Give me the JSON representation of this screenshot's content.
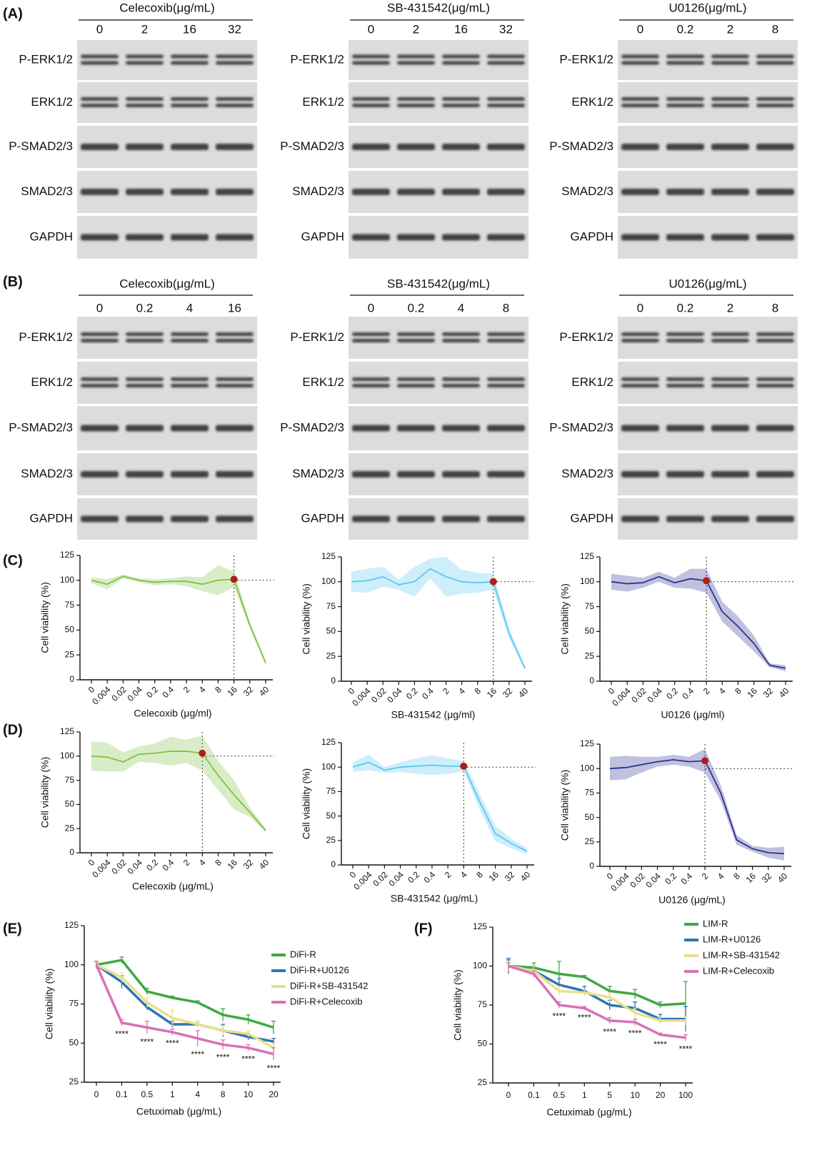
{
  "panel_labels": [
    "(A)",
    "(B)",
    "(C)",
    "(D)",
    "(E)",
    "(F)"
  ],
  "blots": [
    {
      "title": "Celecoxib(μg/mL)",
      "doses": [
        "0",
        "2",
        "16",
        "32"
      ],
      "proteins": [
        "P-ERK1/2",
        "ERK1/2",
        "P-SMAD2/3",
        "SMAD2/3",
        "GAPDH"
      ]
    },
    {
      "title": "SB-431542(μg/mL)",
      "doses": [
        "0",
        "2",
        "16",
        "32"
      ],
      "proteins": [
        "P-ERK1/2",
        "ERK1/2",
        "P-SMAD2/3",
        "SMAD2/3",
        "GAPDH"
      ]
    },
    {
      "title": "U0126(μg/mL)",
      "doses": [
        "0",
        "0.2",
        "2",
        "8"
      ],
      "proteins": [
        "P-ERK1/2",
        "ERK1/2",
        "P-SMAD2/3",
        "SMAD2/3",
        "GAPDH"
      ]
    },
    {
      "title": "Celecoxib(μg/mL)",
      "doses": [
        "0",
        "0.2",
        "4",
        "16"
      ],
      "proteins": [
        "P-ERK1/2",
        "ERK1/2",
        "P-SMAD2/3",
        "SMAD2/3",
        "GAPDH"
      ]
    },
    {
      "title": "SB-431542(μg/mL)",
      "doses": [
        "0",
        "0.2",
        "4",
        "8"
      ],
      "proteins": [
        "P-ERK1/2",
        "ERK1/2",
        "P-SMAD2/3",
        "SMAD2/3",
        "GAPDH"
      ]
    },
    {
      "title": "U0126(μg/mL)",
      "doses": [
        "0",
        "0.2",
        "2",
        "8"
      ],
      "proteins": [
        "P-ERK1/2",
        "ERK1/2",
        "P-SMAD2/3",
        "SMAD2/3",
        "GAPDH"
      ]
    }
  ],
  "chart_data": [
    {
      "type": "line",
      "band": true,
      "ylabel": "Cell viability (%)",
      "xlabel": "Celecoxib (μg/ml)",
      "categories": [
        "0",
        "0.004",
        "0.02",
        "0.04",
        "0.2",
        "0.4",
        "2",
        "4",
        "8",
        "16",
        "32",
        "40"
      ],
      "series": [
        {
          "color": "#7dc242",
          "values": [
            100,
            96,
            104,
            100,
            98,
            99,
            99,
            96,
            100,
            101,
            55,
            17
          ],
          "errors": [
            3,
            5,
            2,
            2,
            3,
            3,
            5,
            7,
            15,
            8,
            3,
            2
          ]
        }
      ],
      "ylim": [
        0,
        125
      ],
      "yticks": [
        0,
        25,
        50,
        75,
        100,
        125
      ],
      "reference_y": 100,
      "marker": {
        "category": "16",
        "color": "#b01c1c"
      }
    },
    {
      "type": "line",
      "band": true,
      "ylabel": "Cell viability (%)",
      "xlabel": "SB-431542 (μg/ml)",
      "categories": [
        "0",
        "0.004",
        "0.02",
        "0.04",
        "0.2",
        "0.4",
        "2",
        "4",
        "8",
        "16",
        "32",
        "40"
      ],
      "series": [
        {
          "color": "#5bc8ef",
          "values": [
            100,
            101,
            105,
            97,
            100,
            113,
            105,
            100,
            99,
            100,
            48,
            13
          ],
          "errors": [
            10,
            12,
            10,
            5,
            15,
            10,
            20,
            12,
            10,
            8,
            5,
            2
          ]
        }
      ],
      "ylim": [
        0,
        125
      ],
      "yticks": [
        0,
        25,
        50,
        75,
        100,
        125
      ],
      "reference_y": 100,
      "marker": {
        "category": "16",
        "color": "#b01c1c"
      }
    },
    {
      "type": "line",
      "band": true,
      "ylabel": "Cell viability (%)",
      "xlabel": "U0126 (μg/ml)",
      "categories": [
        "0",
        "0.004",
        "0.02",
        "0.04",
        "0.2",
        "0.4",
        "2",
        "4",
        "8",
        "16",
        "32",
        "40"
      ],
      "series": [
        {
          "color": "#2e3192",
          "values": [
            100,
            98,
            99,
            105,
            99,
            103,
            101,
            70,
            55,
            38,
            16,
            13
          ],
          "errors": [
            8,
            8,
            5,
            5,
            5,
            10,
            12,
            10,
            10,
            8,
            2,
            3
          ]
        }
      ],
      "ylim": [
        0,
        125
      ],
      "yticks": [
        0,
        25,
        50,
        75,
        100,
        125
      ],
      "reference_y": 100,
      "marker": {
        "category": "2",
        "color": "#b01c1c"
      }
    },
    {
      "type": "line",
      "band": true,
      "ylabel": "Cell viability (%)",
      "xlabel": "Celecoxib (μg/mL)",
      "categories": [
        "0",
        "0.004",
        "0.02",
        "0.04",
        "0.2",
        "0.4",
        "2",
        "4",
        "8",
        "16",
        "32",
        "40"
      ],
      "series": [
        {
          "color": "#7dc242",
          "values": [
            100,
            99,
            94,
            102,
            103,
            105,
            105,
            103,
            80,
            60,
            42,
            23
          ],
          "errors": [
            15,
            15,
            10,
            8,
            10,
            15,
            12,
            18,
            15,
            15,
            5,
            2
          ]
        }
      ],
      "ylim": [
        0,
        125
      ],
      "yticks": [
        0,
        25,
        50,
        75,
        100,
        125
      ],
      "reference_y": 100,
      "marker": {
        "category": "4",
        "color": "#b01c1c"
      }
    },
    {
      "type": "line",
      "band": true,
      "ylabel": "Cell viability (%)",
      "xlabel": "SB-431542 (μg/mL)",
      "categories": [
        "0",
        "0.004",
        "0.02",
        "0.04",
        "0.2",
        "0.4",
        "2",
        "4",
        "8",
        "16",
        "32",
        "40"
      ],
      "series": [
        {
          "color": "#5bc8ef",
          "values": [
            100,
            105,
            97,
            100,
            101,
            102,
            101,
            101,
            65,
            32,
            22,
            14
          ],
          "errors": [
            5,
            8,
            3,
            5,
            8,
            10,
            8,
            5,
            8,
            8,
            5,
            3
          ]
        }
      ],
      "ylim": [
        0,
        125
      ],
      "yticks": [
        0,
        25,
        50,
        75,
        100,
        125
      ],
      "reference_y": 100,
      "marker": {
        "category": "4",
        "color": "#b01c1c"
      }
    },
    {
      "type": "line",
      "band": true,
      "ylabel": "Cell viability (%)",
      "xlabel": "U0126 (μg/mL)",
      "categories": [
        "0",
        "0.004",
        "0.02",
        "0.04",
        "0.2",
        "0.4",
        "2",
        "4",
        "8",
        "16",
        "32",
        "40"
      ],
      "series": [
        {
          "color": "#2e3192",
          "values": [
            100,
            101,
            104,
            107,
            109,
            107,
            108,
            75,
            27,
            18,
            14,
            13
          ],
          "errors": [
            12,
            12,
            8,
            5,
            5,
            5,
            12,
            8,
            5,
            3,
            5,
            7
          ]
        }
      ],
      "ylim": [
        0,
        125
      ],
      "yticks": [
        0,
        25,
        50,
        75,
        100,
        125
      ],
      "reference_y": 100,
      "marker": {
        "category": "2",
        "color": "#b01c1c"
      }
    },
    {
      "type": "line",
      "band": false,
      "ylabel": "Cell viability (%)",
      "xlabel": "Cetuximab (μg/mL)",
      "categories": [
        "0",
        "0.1",
        "0.5",
        "1",
        "4",
        "8",
        "10",
        "20"
      ],
      "series": [
        {
          "name": "DiFi-R",
          "color": "#3ea843",
          "values": [
            100,
            103,
            83,
            79,
            76,
            68,
            65,
            60
          ],
          "errors": [
            2,
            2,
            2,
            1,
            1,
            4,
            3,
            4
          ]
        },
        {
          "name": "DiFi-R+U0126",
          "color": "#2e75b6",
          "values": [
            100,
            89,
            73,
            62,
            62,
            58,
            54,
            51
          ],
          "errors": [
            2,
            4,
            2,
            2,
            2,
            4,
            2,
            2
          ]
        },
        {
          "name": "DiFi-R+SB-431542",
          "color": "#e8df8c",
          "values": [
            100,
            92,
            76,
            66,
            62,
            58,
            56,
            47
          ],
          "errors": [
            3,
            3,
            3,
            5,
            2,
            3,
            2,
            3
          ]
        },
        {
          "name": "DiFi-R+Celecoxib",
          "color": "#d970b8",
          "values": [
            100,
            63,
            60,
            57,
            53,
            49,
            47,
            43
          ],
          "errors": [
            2,
            2,
            4,
            2,
            5,
            3,
            2,
            4
          ]
        }
      ],
      "ylim": [
        25,
        125
      ],
      "yticks": [
        25,
        50,
        75,
        100,
        125
      ],
      "legend": "upper right",
      "annotations": [
        {
          "category": "0.1",
          "text": "****"
        },
        {
          "category": "0.5",
          "text": "****"
        },
        {
          "category": "1",
          "text": "****"
        },
        {
          "category": "4",
          "text": "****"
        },
        {
          "category": "8",
          "text": "****"
        },
        {
          "category": "10",
          "text": "****"
        },
        {
          "category": "20",
          "text": "****"
        }
      ]
    },
    {
      "type": "line",
      "band": false,
      "ylabel": "Cell viability (%)",
      "xlabel": "Cetuximab (μg/mL)",
      "categories": [
        "0",
        "0.1",
        "0.5",
        "1",
        "5",
        "10",
        "20",
        "100"
      ],
      "series": [
        {
          "name": "LIM-R",
          "color": "#3ea843",
          "values": [
            100,
            99,
            95,
            93,
            84,
            82,
            75,
            76
          ],
          "errors": [
            4,
            3,
            8,
            1,
            3,
            3,
            2,
            14
          ]
        },
        {
          "name": "LIM-R+U0126",
          "color": "#2e75b6",
          "values": [
            100,
            97,
            88,
            84,
            75,
            73,
            66,
            66
          ],
          "errors": [
            5,
            3,
            4,
            3,
            3,
            4,
            3,
            8
          ]
        },
        {
          "name": "LIM-R+SB-431542",
          "color": "#e8df8c",
          "values": [
            100,
            97,
            84,
            83,
            80,
            70,
            65,
            65
          ],
          "errors": [
            3,
            3,
            3,
            2,
            3,
            3,
            2,
            3
          ]
        },
        {
          "name": "LIM-R+Celecoxib",
          "color": "#d970b8",
          "values": [
            100,
            95,
            75,
            73,
            65,
            64,
            56,
            54
          ],
          "errors": [
            2,
            2,
            2,
            1,
            2,
            2,
            1,
            2
          ]
        }
      ],
      "ylim": [
        25,
        125
      ],
      "yticks": [
        25,
        50,
        75,
        100,
        125
      ],
      "legend": "upper right",
      "annotations": [
        {
          "category": "0.5",
          "text": "****"
        },
        {
          "category": "1",
          "text": "****"
        },
        {
          "category": "5",
          "text": "****"
        },
        {
          "category": "10",
          "text": "****"
        },
        {
          "category": "20",
          "text": "****"
        },
        {
          "category": "100",
          "text": "****"
        }
      ]
    }
  ]
}
